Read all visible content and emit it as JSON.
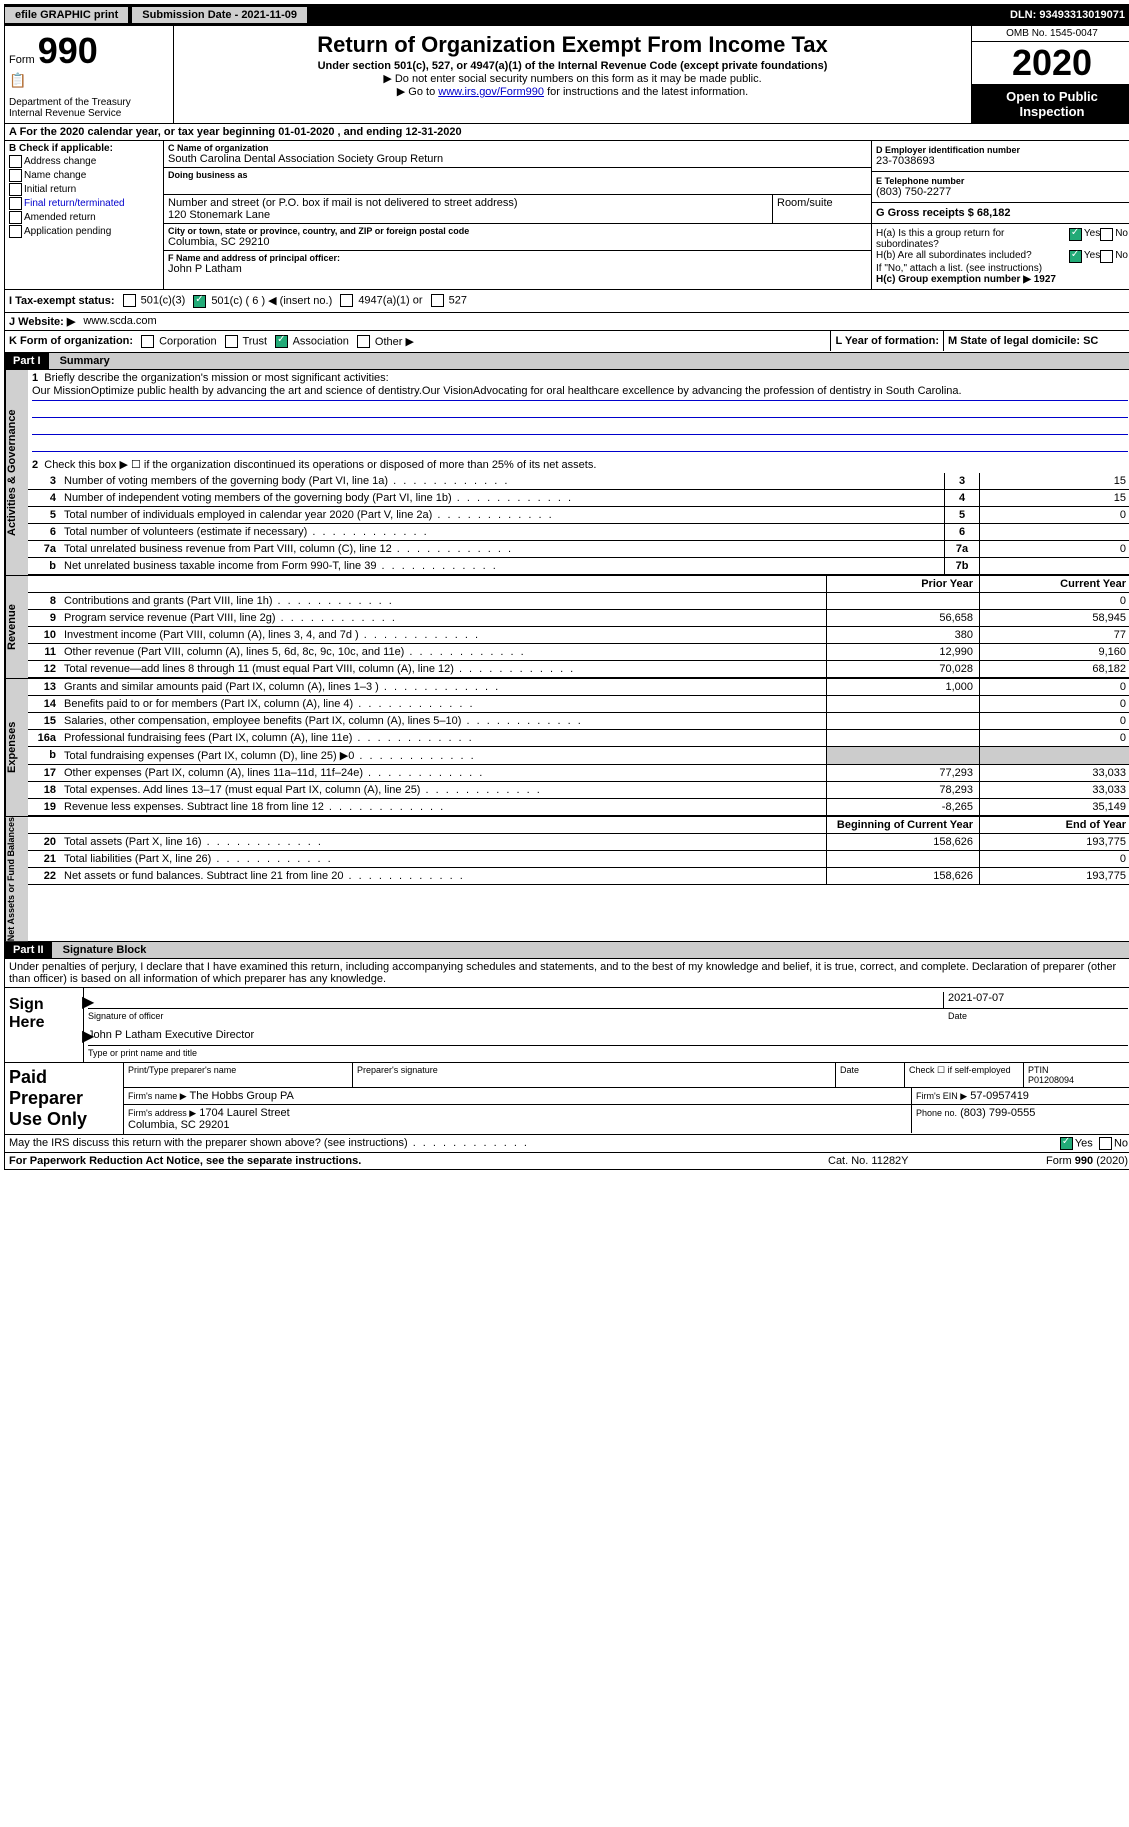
{
  "topbar": {
    "efile": "efile GRAPHIC print",
    "submission": "Submission Date - 2021-11-09",
    "dln": "DLN: 93493313019071"
  },
  "header": {
    "form_prefix": "Form",
    "form_number": "990",
    "title": "Return of Organization Exempt From Income Tax",
    "subtitle": "Under section 501(c), 527, or 4947(a)(1) of the Internal Revenue Code (except private foundations)",
    "note1": "▶ Do not enter social security numbers on this form as it may be made public.",
    "note2_pre": "▶ Go to ",
    "note2_link": "www.irs.gov/Form990",
    "note2_post": " for instructions and the latest information.",
    "dept": "Department of the Treasury\nInternal Revenue Service",
    "omb": "OMB No. 1545-0047",
    "year": "2020",
    "inspection": "Open to Public Inspection"
  },
  "row_a": "A For the 2020 calendar year, or tax year beginning 01-01-2020   , and ending 12-31-2020",
  "col_b": {
    "title": "B Check if applicable:",
    "items": [
      "Address change",
      "Name change",
      "Initial return",
      "Final return/terminated",
      "Amended return",
      "Application pending"
    ]
  },
  "org": {
    "c_label": "C Name of organization",
    "name": "South Carolina Dental Association Society Group Return",
    "dba_label": "Doing business as",
    "street_label": "Number and street (or P.O. box if mail is not delivered to street address)",
    "room_label": "Room/suite",
    "street": "120 Stonemark Lane",
    "city_label": "City or town, state or province, country, and ZIP or foreign postal code",
    "city": "Columbia, SC  29210",
    "f_label": "F Name and address of principal officer:",
    "officer": "John P Latham"
  },
  "col_d": {
    "d_label": "D Employer identification number",
    "ein": "23-7038693",
    "e_label": "E Telephone number",
    "phone": "(803) 750-2277",
    "g_label": "G Gross receipts $ 68,182"
  },
  "h": {
    "ha": "H(a)  Is this a group return for subordinates?",
    "hb": "H(b)  Are all subordinates included?",
    "hb_note": "If \"No,\" attach a list. (see instructions)",
    "hc": "H(c)  Group exemption number ▶   1927",
    "yes": "Yes",
    "no": "No"
  },
  "tax_status": {
    "label": "I  Tax-exempt status:",
    "opts": [
      "501(c)(3)",
      "501(c) ( 6 ) ◀ (insert no.)",
      "4947(a)(1) or",
      "527"
    ]
  },
  "website": {
    "label": "J  Website: ▶",
    "value": "www.scda.com"
  },
  "k": {
    "label": "K Form of organization:",
    "opts": [
      "Corporation",
      "Trust",
      "Association",
      "Other ▶"
    ],
    "l_label": "L Year of formation:",
    "m_label": "M State of legal domicile: SC"
  },
  "part1": {
    "header": "Part I",
    "title": "Summary",
    "q1": "Briefly describe the organization's mission or most significant activities:",
    "mission": "Our MissionOptimize public health by advancing the art and science of dentistry.Our VisionAdvocating for oral healthcare excellence by advancing the profession of dentistry in South Carolina.",
    "q2": "Check this box ▶ ☐ if the organization discontinued its operations or disposed of more than 25% of its net assets.",
    "sections": {
      "gov": "Activities & Governance",
      "rev": "Revenue",
      "exp": "Expenses",
      "net": "Net Assets or Fund Balances"
    },
    "gov_lines": [
      {
        "n": "3",
        "d": "Number of voting members of the governing body (Part VI, line 1a)",
        "b": "3",
        "v": "15"
      },
      {
        "n": "4",
        "d": "Number of independent voting members of the governing body (Part VI, line 1b)",
        "b": "4",
        "v": "15"
      },
      {
        "n": "5",
        "d": "Total number of individuals employed in calendar year 2020 (Part V, line 2a)",
        "b": "5",
        "v": "0"
      },
      {
        "n": "6",
        "d": "Total number of volunteers (estimate if necessary)",
        "b": "6",
        "v": ""
      },
      {
        "n": "7a",
        "d": "Total unrelated business revenue from Part VIII, column (C), line 12",
        "b": "7a",
        "v": "0"
      },
      {
        "n": "b",
        "d": "Net unrelated business taxable income from Form 990-T, line 39",
        "b": "7b",
        "v": ""
      }
    ],
    "cols": {
      "prior": "Prior Year",
      "current": "Current Year"
    },
    "rev_lines": [
      {
        "n": "8",
        "d": "Contributions and grants (Part VIII, line 1h)",
        "p": "",
        "c": "0"
      },
      {
        "n": "9",
        "d": "Program service revenue (Part VIII, line 2g)",
        "p": "56,658",
        "c": "58,945"
      },
      {
        "n": "10",
        "d": "Investment income (Part VIII, column (A), lines 3, 4, and 7d )",
        "p": "380",
        "c": "77"
      },
      {
        "n": "11",
        "d": "Other revenue (Part VIII, column (A), lines 5, 6d, 8c, 9c, 10c, and 11e)",
        "p": "12,990",
        "c": "9,160"
      },
      {
        "n": "12",
        "d": "Total revenue—add lines 8 through 11 (must equal Part VIII, column (A), line 12)",
        "p": "70,028",
        "c": "68,182"
      }
    ],
    "exp_lines": [
      {
        "n": "13",
        "d": "Grants and similar amounts paid (Part IX, column (A), lines 1–3 )",
        "p": "1,000",
        "c": "0"
      },
      {
        "n": "14",
        "d": "Benefits paid to or for members (Part IX, column (A), line 4)",
        "p": "",
        "c": "0"
      },
      {
        "n": "15",
        "d": "Salaries, other compensation, employee benefits (Part IX, column (A), lines 5–10)",
        "p": "",
        "c": "0"
      },
      {
        "n": "16a",
        "d": "Professional fundraising fees (Part IX, column (A), line 11e)",
        "p": "",
        "c": "0"
      },
      {
        "n": "b",
        "d": "Total fundraising expenses (Part IX, column (D), line 25) ▶0",
        "p": "gray",
        "c": "gray"
      },
      {
        "n": "17",
        "d": "Other expenses (Part IX, column (A), lines 11a–11d, 11f–24e)",
        "p": "77,293",
        "c": "33,033"
      },
      {
        "n": "18",
        "d": "Total expenses. Add lines 13–17 (must equal Part IX, column (A), line 25)",
        "p": "78,293",
        "c": "33,033"
      },
      {
        "n": "19",
        "d": "Revenue less expenses. Subtract line 18 from line 12",
        "p": "-8,265",
        "c": "35,149"
      }
    ],
    "net_cols": {
      "b": "Beginning of Current Year",
      "e": "End of Year"
    },
    "net_lines": [
      {
        "n": "20",
        "d": "Total assets (Part X, line 16)",
        "p": "158,626",
        "c": "193,775"
      },
      {
        "n": "21",
        "d": "Total liabilities (Part X, line 26)",
        "p": "",
        "c": "0"
      },
      {
        "n": "22",
        "d": "Net assets or fund balances. Subtract line 21 from line 20",
        "p": "158,626",
        "c": "193,775"
      }
    ]
  },
  "part2": {
    "header": "Part II",
    "title": "Signature Block",
    "penalty": "Under penalties of perjury, I declare that I have examined this return, including accompanying schedules and statements, and to the best of my knowledge and belief, it is true, correct, and complete. Declaration of preparer (other than officer) is based on all information of which preparer has any knowledge.",
    "sign_here": "Sign Here",
    "sig_label": "Signature of officer",
    "date_label": "Date",
    "date_val": "2021-07-07",
    "name_val": "John P Latham  Executive Director",
    "name_label": "Type or print name and title",
    "paid": "Paid Preparer Use Only",
    "prep_name": "Print/Type preparer's name",
    "prep_sig": "Preparer's signature",
    "check_self": "Check ☐ if self-employed",
    "ptin_label": "PTIN",
    "ptin": "P01208094",
    "firm_name_label": "Firm's name   ▶",
    "firm_name": "The Hobbs Group PA",
    "firm_ein_label": "Firm's EIN ▶",
    "firm_ein": "57-0957419",
    "firm_addr_label": "Firm's address ▶",
    "firm_addr": "1704 Laurel Street\nColumbia, SC  29201",
    "firm_phone_label": "Phone no.",
    "firm_phone": "(803) 799-0555",
    "discuss": "May the IRS discuss this return with the preparer shown above? (see instructions)"
  },
  "footer": {
    "pra": "For Paperwork Reduction Act Notice, see the separate instructions.",
    "cat": "Cat. No. 11282Y",
    "form": "Form 990 (2020)"
  }
}
